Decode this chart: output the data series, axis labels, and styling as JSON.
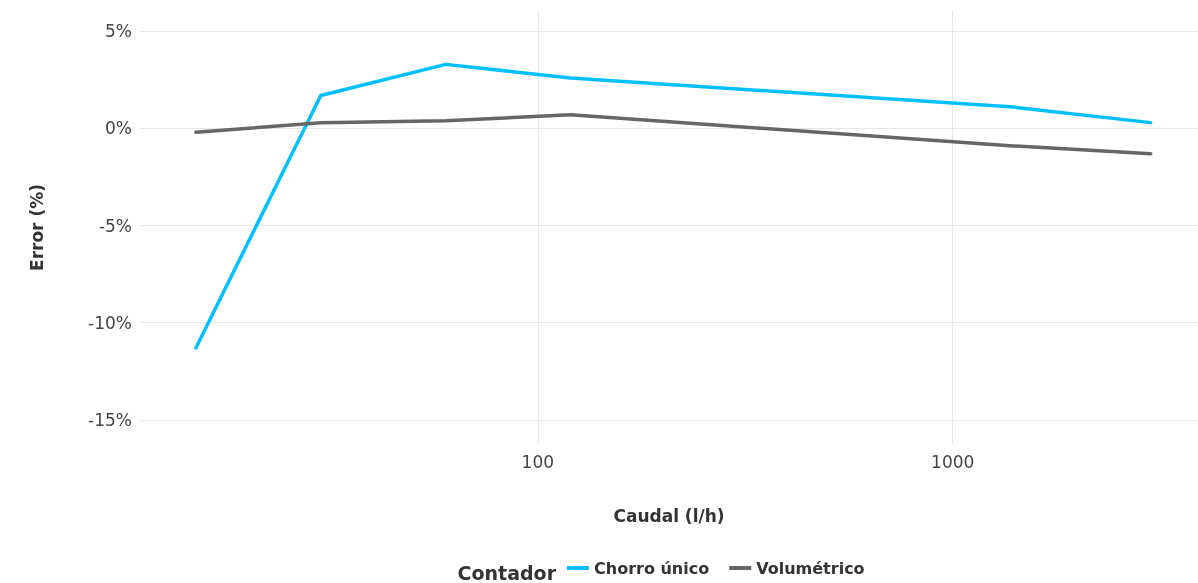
{
  "chart_data": {
    "type": "line",
    "xlabel": "Caudal (l/h)",
    "ylabel": "Error (%)",
    "legend_title": "Contador",
    "x": [
      15,
      30,
      60,
      120,
      1400,
      3000
    ],
    "series": [
      {
        "name": "Chorro único",
        "color": "#00bfff",
        "values": [
          -11.3,
          1.7,
          3.3,
          2.6,
          1.1,
          0.3
        ]
      },
      {
        "name": "Volumétrico",
        "color": "#666666",
        "values": [
          -0.2,
          0.3,
          0.4,
          0.7,
          -0.9,
          -1.3
        ]
      }
    ],
    "log": "x",
    "xlim": [
      11,
      3900
    ],
    "xticks": [
      100,
      1000
    ],
    "ylim": [
      -16.3,
      6.1
    ],
    "yticks": [
      {
        "value": -15,
        "label": "-15%"
      },
      {
        "value": -10,
        "label": "-10%"
      },
      {
        "value": -5,
        "label": "-5%"
      },
      {
        "value": 0,
        "label": "0%"
      },
      {
        "value": 5,
        "label": "5%"
      }
    ],
    "grid": true,
    "legend": "bottom",
    "marker": "none",
    "line_style": "solid"
  }
}
